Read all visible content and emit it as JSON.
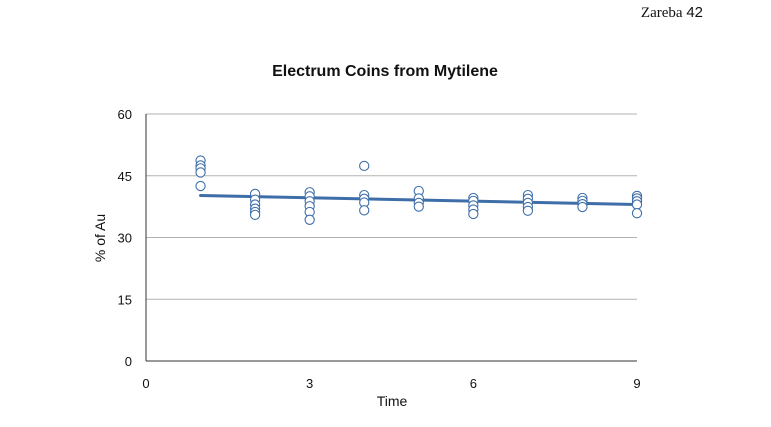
{
  "header": {
    "author": "Zareba",
    "page_number": "42"
  },
  "chart_data": {
    "type": "scatter",
    "title": "Electrum Coins from Mytilene",
    "xlabel": "Time",
    "ylabel": "% of Au",
    "xlim": [
      0,
      9
    ],
    "ylim": [
      0,
      60
    ],
    "xticks": [
      "0",
      "3",
      "6",
      "9"
    ],
    "yticks": [
      "0",
      "15",
      "30",
      "45",
      "60"
    ],
    "grid": true,
    "legend": "none",
    "marker_color": "#3e6ea8",
    "trend_color": "#3e6ea8",
    "points": [
      {
        "x": 1,
        "y": 48.7
      },
      {
        "x": 1,
        "y": 47.5
      },
      {
        "x": 1,
        "y": 46.8
      },
      {
        "x": 1,
        "y": 45.8
      },
      {
        "x": 1,
        "y": 42.5
      },
      {
        "x": 2,
        "y": 40.6
      },
      {
        "x": 2,
        "y": 39.2
      },
      {
        "x": 2,
        "y": 38.0
      },
      {
        "x": 2,
        "y": 37.0
      },
      {
        "x": 2,
        "y": 36.2
      },
      {
        "x": 2,
        "y": 35.5
      },
      {
        "x": 3,
        "y": 41.0
      },
      {
        "x": 3,
        "y": 40.0
      },
      {
        "x": 3,
        "y": 38.8
      },
      {
        "x": 3,
        "y": 37.6
      },
      {
        "x": 3,
        "y": 36.2
      },
      {
        "x": 3,
        "y": 34.3
      },
      {
        "x": 4,
        "y": 47.4
      },
      {
        "x": 4,
        "y": 40.3
      },
      {
        "x": 4,
        "y": 39.4
      },
      {
        "x": 4,
        "y": 38.5
      },
      {
        "x": 4,
        "y": 36.6
      },
      {
        "x": 5,
        "y": 41.3
      },
      {
        "x": 5,
        "y": 39.5
      },
      {
        "x": 5,
        "y": 38.4
      },
      {
        "x": 5,
        "y": 37.5
      },
      {
        "x": 6,
        "y": 39.6
      },
      {
        "x": 6,
        "y": 38.9
      },
      {
        "x": 6,
        "y": 37.8
      },
      {
        "x": 6,
        "y": 36.8
      },
      {
        "x": 6,
        "y": 35.7
      },
      {
        "x": 7,
        "y": 40.3
      },
      {
        "x": 7,
        "y": 39.4
      },
      {
        "x": 7,
        "y": 38.4
      },
      {
        "x": 7,
        "y": 37.4
      },
      {
        "x": 7,
        "y": 36.5
      },
      {
        "x": 8,
        "y": 39.6
      },
      {
        "x": 8,
        "y": 38.9
      },
      {
        "x": 8,
        "y": 38.1
      },
      {
        "x": 8,
        "y": 37.4
      },
      {
        "x": 9,
        "y": 40.1
      },
      {
        "x": 9,
        "y": 39.5
      },
      {
        "x": 9,
        "y": 38.8
      },
      {
        "x": 9,
        "y": 38.0
      },
      {
        "x": 9,
        "y": 35.9
      }
    ],
    "trendline": {
      "x": [
        1,
        9
      ],
      "y": [
        40.2,
        38.0
      ]
    }
  }
}
